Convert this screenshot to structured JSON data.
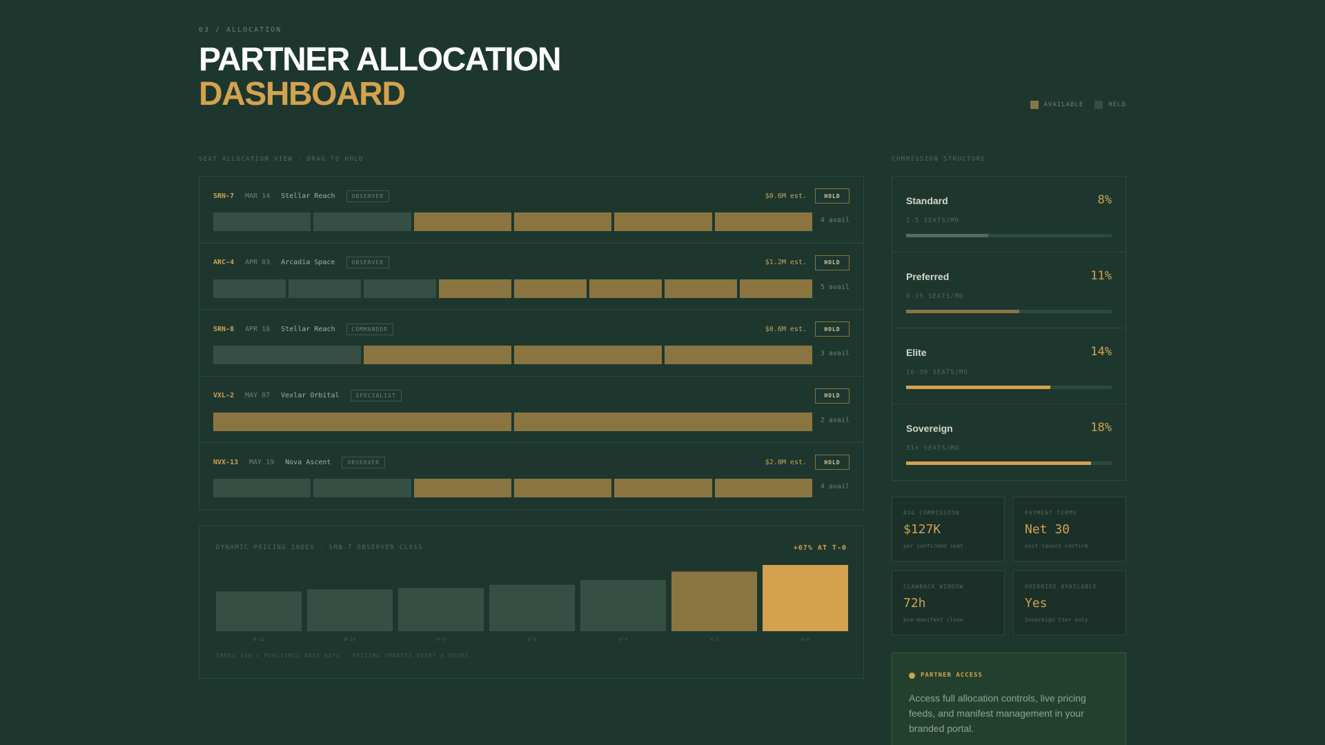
{
  "header": {
    "kicker": "03 / ALLOCATION",
    "title_line1": "PARTNER ALLOCATION",
    "title_line2": "DASHBOARD"
  },
  "legend": [
    {
      "label": "AVAILABLE",
      "color": "#8a7541"
    },
    {
      "label": "HELD",
      "color": "#354f45"
    }
  ],
  "colors": {
    "accent": "#d4a24f",
    "available": "#8a7541",
    "held": "#354f45",
    "background": "#1d372e"
  },
  "allocation": {
    "label": "SEAT ALLOCATION VIEW · DRAG TO HOLD",
    "hold_label": "HOLD",
    "rows": [
      {
        "code": "SRN-7",
        "date": "MAR 14",
        "org": "Stellar Reach",
        "tag": "OBSERVER",
        "est": "$0.6M est.",
        "seats": [
          "held",
          "held",
          "avail",
          "avail",
          "avail",
          "avail"
        ],
        "avail": "4 avail"
      },
      {
        "code": "ARC-4",
        "date": "APR 03",
        "org": "Arcadia Space",
        "tag": "OBSERVER",
        "est": "$1.2M est.",
        "seats": [
          "held",
          "held",
          "held",
          "avail",
          "avail",
          "avail",
          "avail",
          "avail"
        ],
        "avail": "5 avail"
      },
      {
        "code": "SRN-8",
        "date": "APR 18",
        "org": "Stellar Reach",
        "tag": "COMMANDER",
        "est": "$0.6M est.",
        "seats": [
          "held",
          "avail",
          "avail",
          "avail"
        ],
        "avail": "3 avail"
      },
      {
        "code": "VXL-2",
        "date": "MAY 07",
        "org": "Vexlar Orbital",
        "tag": "SPECIALIST",
        "est": "",
        "seats": [
          "avail",
          "avail"
        ],
        "avail": "2 avail"
      },
      {
        "code": "NVX-13",
        "date": "MAY 19",
        "org": "Nova Ascent",
        "tag": "OBSERVER",
        "est": "$2.0M est.",
        "seats": [
          "held",
          "held",
          "avail",
          "avail",
          "avail",
          "avail"
        ],
        "avail": "4 avail"
      }
    ]
  },
  "pricing": {
    "title": "DYNAMIC PRICING INDEX · SRN-7 OBSERVER CLASS",
    "delta": "+67% AT T-0",
    "footnote": "INDEX 100 = PUBLISHED BASE RATE · PRICING UPDATES EVERY 6 HOURS"
  },
  "chart_data": {
    "type": "bar",
    "title": "DYNAMIC PRICING INDEX · SRN-7 OBSERVER CLASS",
    "categories": [
      "W-12",
      "W-10",
      "W-8",
      "W-6",
      "W-4",
      "W-2",
      "W-0"
    ],
    "values": [
      60,
      63,
      65,
      70,
      77,
      90,
      100
    ],
    "bar_colors": [
      "#354f45",
      "#354f45",
      "#354f45",
      "#354f45",
      "#354f45",
      "#8a7541",
      "#d4a24f"
    ],
    "ylim": [
      0,
      100
    ],
    "grid": false,
    "xlabel": "",
    "ylabel": ""
  },
  "commission": {
    "label": "COMMISSION STRUCTURE",
    "tiers": [
      {
        "name": "Standard",
        "rate": "8%",
        "seats": "1-5 SEATS/MO",
        "level": 0.4,
        "color": "#566b5e"
      },
      {
        "name": "Preferred",
        "rate": "11%",
        "seats": "6-15 SEATS/MO",
        "level": 0.55,
        "color": "#8a7541"
      },
      {
        "name": "Elite",
        "rate": "14%",
        "seats": "16-30 SEATS/MO",
        "level": 0.7,
        "color": "#d4a24f"
      },
      {
        "name": "Sovereign",
        "rate": "18%",
        "seats": "31+ SEATS/MO",
        "level": 0.9,
        "color": "#d4a24f"
      }
    ]
  },
  "stats": [
    {
      "label": "AVG COMMISSION",
      "value": "$127K",
      "sub": "per confirmed seat"
    },
    {
      "label": "PAYMENT TERMS",
      "value": "Net 30",
      "sub": "post-launch confirm"
    },
    {
      "label": "CLAWBACK WINDOW",
      "value": "72h",
      "sub": "pre-manifest close"
    },
    {
      "label": "OVERRIDE AVAILABLE",
      "value": "Yes",
      "sub": "Sovereign tier only"
    }
  ],
  "access": {
    "title": "PARTNER ACCESS",
    "text": "Access full allocation controls, live pricing feeds, and manifest management in your branded portal."
  }
}
